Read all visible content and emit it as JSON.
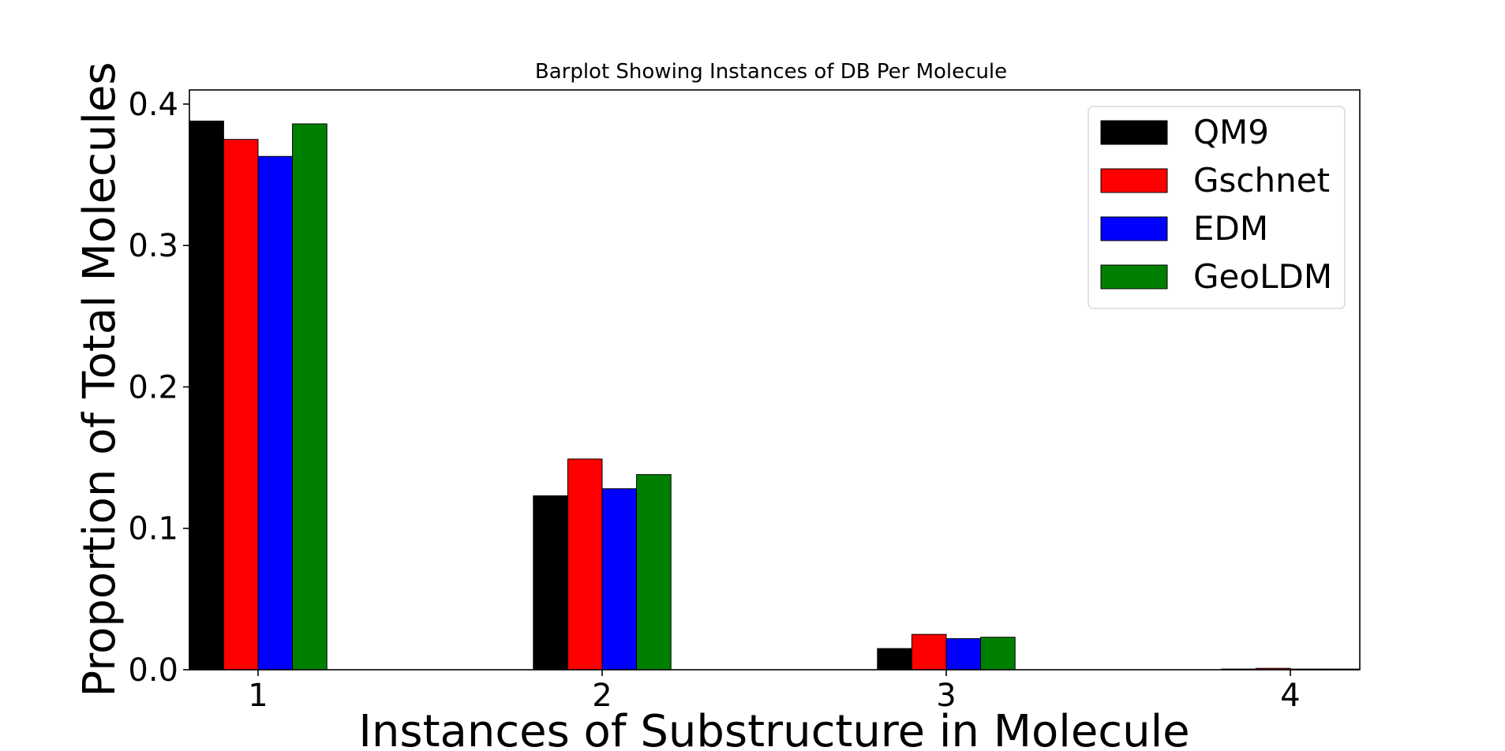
{
  "chart_data": {
    "type": "bar",
    "title": "Barplot Showing Instances of DB Per Molecule",
    "xlabel": "Instances of Substructure in Molecule",
    "ylabel": "Proportion of Total Molecules",
    "categories": [
      "1",
      "2",
      "3",
      "4"
    ],
    "series": [
      {
        "name": "QM9",
        "color": "#000000",
        "values": [
          0.388,
          0.123,
          0.015,
          0.0005
        ]
      },
      {
        "name": "Gschnet",
        "color": "#ff0000",
        "values": [
          0.375,
          0.149,
          0.025,
          0.001
        ]
      },
      {
        "name": "EDM",
        "color": "#0000ff",
        "values": [
          0.363,
          0.128,
          0.022,
          0.0005
        ]
      },
      {
        "name": "GeoLDM",
        "color": "#008000",
        "values": [
          0.386,
          0.138,
          0.023,
          0.0005
        ]
      }
    ],
    "ylim": [
      0,
      0.41
    ],
    "yticks": [
      "0.0",
      "0.1",
      "0.2",
      "0.3",
      "0.4"
    ],
    "grid": false,
    "legend_position": "top-right"
  }
}
